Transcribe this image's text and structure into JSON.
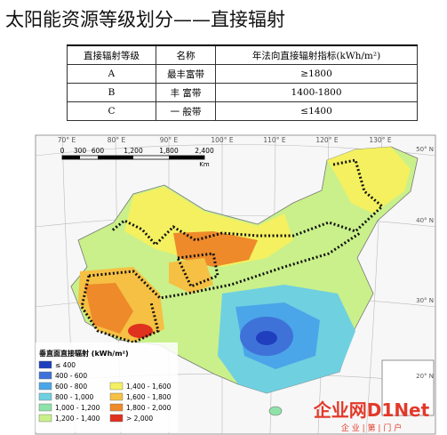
{
  "title": "太阳能资源等级划分——直接辐射",
  "table": {
    "headers": [
      "直接辐射等级",
      "名称",
      "年法向直接辐射指标(kWh/m²)"
    ],
    "rows": [
      [
        "A",
        "最丰富带",
        "≥1800"
      ],
      [
        "B",
        "丰  富带",
        "1400-1800"
      ],
      [
        "C",
        "一  般带",
        "≤1400"
      ]
    ]
  },
  "map": {
    "longitudes": [
      "70° E",
      "80° E",
      "90° E",
      "100° E",
      "110° E",
      "120° E",
      "130° E"
    ],
    "latitudes": [
      "50° N",
      "40° N",
      "30° N",
      "20° N"
    ],
    "scale": {
      "ticks": [
        "0",
        "300",
        "600",
        "1,200",
        "1,800",
        "2,400"
      ],
      "unit": "Km"
    },
    "legend": {
      "title": "垂直面直接辐射 (kWh/m²)",
      "items": [
        {
          "label": "≤ 400",
          "color": "#1f3fbf"
        },
        {
          "label": "400 - 600",
          "color": "#3f72d9"
        },
        {
          "label": "600 - 800",
          "color": "#4aa6e8"
        },
        {
          "label": "800 - 1,000",
          "color": "#6fd0e0"
        },
        {
          "label": "1,000 - 1,200",
          "color": "#8fe3a8"
        },
        {
          "label": "1,200 - 1,400",
          "color": "#c9f08a"
        },
        {
          "label": "1,400 - 1,600",
          "color": "#f4f060"
        },
        {
          "label": "1,600 - 1,800",
          "color": "#f5c043"
        },
        {
          "label": "1,800 - 2,000",
          "color": "#ee8a2a"
        },
        {
          "label": "> 2,000",
          "color": "#e0301e"
        }
      ]
    }
  },
  "watermark": {
    "brand": "企业网D1Net",
    "tagline": "企 业 | 第 | 门 户"
  }
}
